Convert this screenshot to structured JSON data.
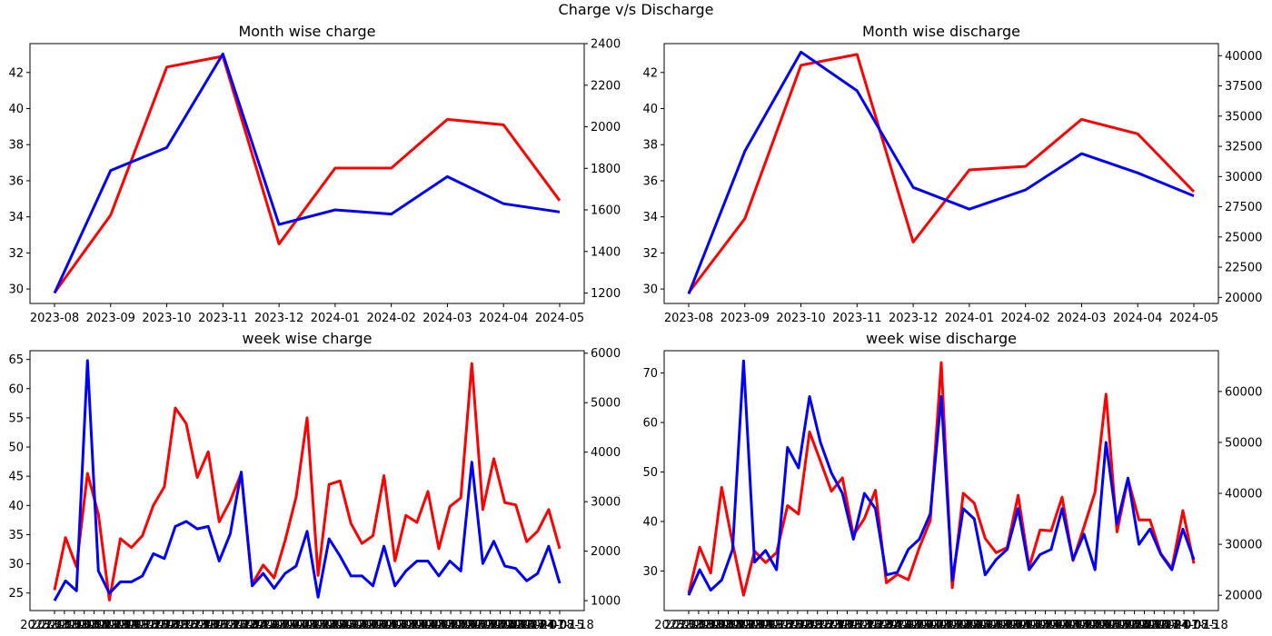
{
  "figure": {
    "title": "Charge v/s Discharge"
  },
  "chart_data": [
    {
      "type": "line",
      "title": "Month wise charge",
      "x": [
        "2023-08",
        "2023-09",
        "2023-10",
        "2023-11",
        "2023-12",
        "2024-01",
        "2024-02",
        "2024-03",
        "2024-04",
        "2024-05"
      ],
      "x_tick_labels": [
        "2023-08",
        "2023-09",
        "2023-10",
        "2023-11",
        "2023-12",
        "2024-01",
        "2024-02",
        "2024-03",
        "2024-04",
        "2024-05"
      ],
      "left_axis": {
        "ylim": [
          29.2,
          43.6
        ],
        "ticks": [
          30,
          32,
          34,
          36,
          38,
          40,
          42
        ]
      },
      "right_axis": {
        "ylim": [
          1150,
          2400
        ],
        "ticks": [
          1200,
          1400,
          1600,
          1800,
          2000,
          2200,
          2400
        ]
      },
      "series": [
        {
          "axis": "left",
          "color": "#ff0000",
          "values": [
            29.8,
            34.1,
            42.3,
            42.9,
            32.5,
            36.7,
            36.7,
            39.4,
            39.1,
            34.9
          ]
        },
        {
          "axis": "right",
          "color": "#0000ff",
          "values": [
            1200,
            1790,
            1900,
            2350,
            1530,
            1600,
            1580,
            1760,
            1630,
            1590
          ]
        }
      ]
    },
    {
      "type": "line",
      "title": "Month wise discharge",
      "x": [
        "2023-08",
        "2023-09",
        "2023-10",
        "2023-11",
        "2023-12",
        "2024-01",
        "2024-02",
        "2024-03",
        "2024-04",
        "2024-05"
      ],
      "x_tick_labels": [
        "2023-08",
        "2023-09",
        "2023-10",
        "2023-11",
        "2023-12",
        "2024-01",
        "2024-02",
        "2024-03",
        "2024-04",
        "2024-05"
      ],
      "left_axis": {
        "ylim": [
          29.2,
          43.6
        ],
        "ticks": [
          30,
          32,
          34,
          36,
          38,
          40,
          42
        ]
      },
      "right_axis": {
        "ylim": [
          19500,
          41000
        ],
        "ticks": [
          20000,
          22500,
          25000,
          27500,
          30000,
          32500,
          35000,
          37500,
          40000
        ]
      },
      "series": [
        {
          "axis": "left",
          "color": "#ff0000",
          "values": [
            29.8,
            33.9,
            42.4,
            43.0,
            32.6,
            36.6,
            36.8,
            39.4,
            38.6,
            35.4
          ]
        },
        {
          "axis": "right",
          "color": "#0000ff",
          "values": [
            20300,
            32100,
            40300,
            37100,
            29100,
            27300,
            28900,
            31900,
            30300,
            28400
          ]
        }
      ]
    },
    {
      "type": "line",
      "title": "week wise charge",
      "x_tick_labels": [
        "2023-07-31",
        "2023-08-07",
        "2023-08-14",
        "2023-08-21",
        "2023-08-28",
        "2023-09-04",
        "2023-09-11",
        "2023-09-18",
        "2023-09-25",
        "2023-10-02",
        "2023-10-09",
        "2023-10-16",
        "2023-10-23",
        "2023-10-30",
        "2023-11-06",
        "2023-11-13",
        "2023-11-20",
        "2023-11-27",
        "2023-12-04",
        "2023-12-11",
        "2023-12-18",
        "2023-12-25",
        "2024-01-01",
        "2024-01-08",
        "2024-01-15",
        "2024-01-22",
        "2024-01-29",
        "2024-02-05",
        "2024-02-12",
        "2024-02-19",
        "2024-02-26",
        "2024-03-04",
        "2024-03-11",
        "2024-03-18",
        "2024-03-25",
        "2024-04-01",
        "2024-04-08",
        "2024-04-15",
        "2024-04-22",
        "2024-04-29",
        "2024-05-06",
        "2024-05-13",
        "2024-05-20",
        "2024-05-27",
        "2024-06-03",
        "2024-06-10",
        "2024-06-17",
        "2024-06-24",
        "2024-07-01",
        "2024-07-08",
        "2024-07-15",
        "2024-07-18"
      ],
      "left_axis": {
        "ylim": [
          22,
          66.5
        ],
        "ticks": [
          25,
          30,
          35,
          40,
          45,
          50,
          55,
          60,
          65
        ]
      },
      "right_axis": {
        "ylim": [
          800,
          6050
        ],
        "ticks": [
          1000,
          2000,
          3000,
          4000,
          5000,
          6000
        ]
      },
      "series": [
        {
          "axis": "left",
          "color": "#ff0000",
          "values": [
            25.5,
            34.5,
            29.5,
            45.5,
            38.5,
            23.8,
            34.3,
            32.8,
            34.8,
            40.0,
            43.2,
            56.7,
            54.0,
            44.8,
            49.2,
            37.2,
            40.8,
            45.5,
            26.5,
            29.8,
            27.6,
            34.0,
            41.4,
            55.0,
            28.0,
            43.6,
            44.2,
            36.9,
            33.5,
            34.8,
            45.1,
            30.5,
            38.3,
            37.1,
            42.4,
            32.6,
            39.8,
            41.3,
            64.3,
            39.3,
            48.0,
            40.5,
            40.1,
            33.8,
            35.6,
            39.3,
            32.6
          ]
        },
        {
          "axis": "right",
          "color": "#0000ff",
          "values": [
            1000,
            1400,
            1200,
            5850,
            1600,
            1150,
            1380,
            1380,
            1500,
            1950,
            1850,
            2500,
            2600,
            2450,
            2500,
            1800,
            2350,
            3600,
            1300,
            1550,
            1250,
            1550,
            1700,
            2400,
            1070,
            2250,
            1900,
            1500,
            1500,
            1300,
            2100,
            1300,
            1600,
            1800,
            1800,
            1500,
            1800,
            1600,
            3800,
            1750,
            2200,
            1700,
            1650,
            1400,
            1550,
            2100,
            1350
          ]
        }
      ]
    },
    {
      "type": "line",
      "title": "week wise discharge",
      "x_tick_labels": [
        "2023-07-31",
        "2023-08-07",
        "2023-08-14",
        "2023-08-21",
        "2023-08-28",
        "2023-09-04",
        "2023-09-11",
        "2023-09-18",
        "2023-09-25",
        "2023-10-02",
        "2023-10-09",
        "2023-10-16",
        "2023-10-23",
        "2023-10-30",
        "2023-11-06",
        "2023-11-13",
        "2023-11-20",
        "2023-11-27",
        "2023-12-04",
        "2023-12-11",
        "2023-12-18",
        "2023-12-25",
        "2024-01-01",
        "2024-01-08",
        "2024-01-15",
        "2024-01-22",
        "2024-01-29",
        "2024-02-05",
        "2024-02-12",
        "2024-02-19",
        "2024-02-26",
        "2024-03-04",
        "2024-03-11",
        "2024-03-18",
        "2024-03-25",
        "2024-04-01",
        "2024-04-08",
        "2024-04-15",
        "2024-04-22",
        "2024-04-29",
        "2024-05-06",
        "2024-05-13",
        "2024-05-20",
        "2024-05-27",
        "2024-06-03",
        "2024-06-10",
        "2024-06-17",
        "2024-06-24",
        "2024-07-01",
        "2024-07-08",
        "2024-07-15",
        "2024-07-18"
      ],
      "left_axis": {
        "ylim": [
          22,
          74.5
        ],
        "ticks": [
          30,
          40,
          50,
          60,
          70
        ]
      },
      "right_axis": {
        "ylim": [
          17000,
          68000
        ],
        "ticks": [
          20000,
          30000,
          40000,
          50000,
          60000
        ]
      },
      "series": [
        {
          "axis": "left",
          "color": "#ff0000",
          "values": [
            25.5,
            34.8,
            29.6,
            46.9,
            35.6,
            25.1,
            34.0,
            31.7,
            33.7,
            43.2,
            41.5,
            58.1,
            52.2,
            46.1,
            48.8,
            37.2,
            40.6,
            46.3,
            27.6,
            29.3,
            28.2,
            34.7,
            40.2,
            72.1,
            26.6,
            45.7,
            43.7,
            36.6,
            33.7,
            34.7,
            45.3,
            30.8,
            38.3,
            38.1,
            44.9,
            32.1,
            38.9,
            45.9,
            65.7,
            37.9,
            48.6,
            40.3,
            40.3,
            33.5,
            30.5,
            42.2,
            31.5
          ]
        },
        {
          "axis": "right",
          "color": "#0000ff",
          "values": [
            20000,
            25000,
            21000,
            23000,
            29000,
            66000,
            26500,
            28800,
            25000,
            49000,
            45000,
            59000,
            50000,
            44000,
            40000,
            31000,
            40000,
            37000,
            24000,
            24500,
            29000,
            31000,
            36000,
            59000,
            23000,
            37000,
            35000,
            24000,
            27000,
            29000,
            37000,
            25000,
            28000,
            29000,
            37000,
            27000,
            32000,
            25000,
            50000,
            34000,
            43000,
            30000,
            33000,
            28000,
            25000,
            33000,
            27000
          ]
        }
      ]
    }
  ]
}
